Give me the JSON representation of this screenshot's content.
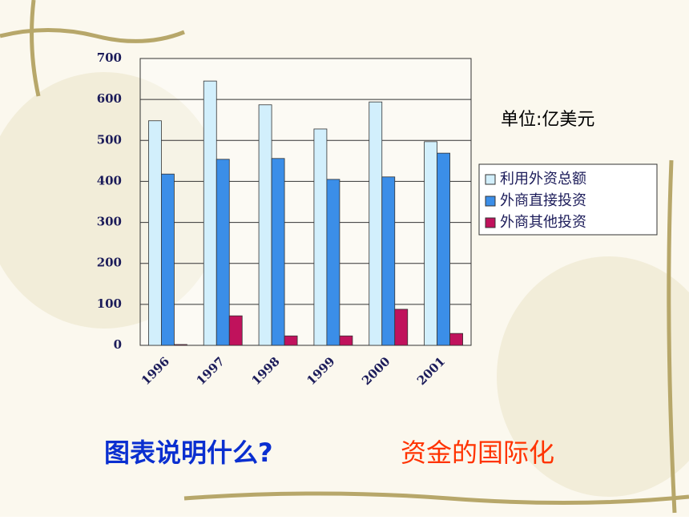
{
  "chart_data": {
    "type": "bar",
    "unit_label": "单位:亿美元",
    "categories": [
      "1996",
      "1997",
      "1998",
      "1999",
      "2000",
      "2001"
    ],
    "series": [
      {
        "name": "利用外资总额",
        "color": "#d2effc",
        "values": [
          548,
          645,
          587,
          528,
          594,
          497
        ]
      },
      {
        "name": "外商直接投资",
        "color": "#3b8ee8",
        "values": [
          418,
          454,
          456,
          405,
          411,
          469
        ]
      },
      {
        "name": "外商其他投资",
        "color": "#c0125c",
        "values": [
          2,
          72,
          23,
          23,
          88,
          29
        ]
      }
    ],
    "ylim": [
      0,
      700
    ],
    "yticks": [
      0,
      100,
      200,
      300,
      400,
      500,
      600,
      700
    ],
    "grid": true,
    "legend": "right",
    "question": "图表说明什么?",
    "answer": "资金的国际化"
  }
}
